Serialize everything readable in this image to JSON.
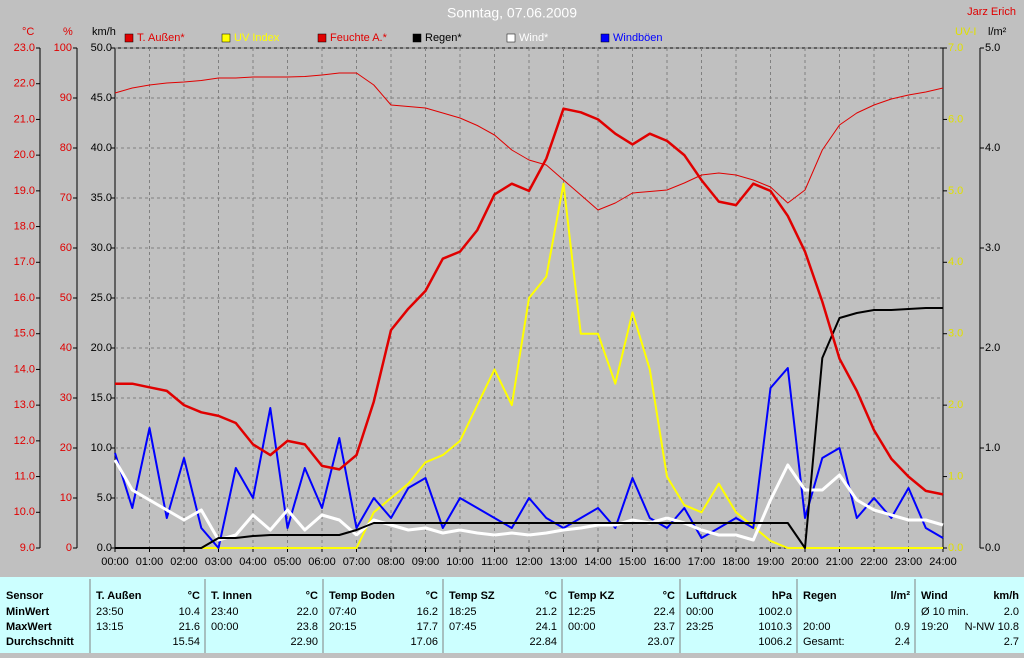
{
  "chart_data": {
    "type": "line",
    "title": "Sonntag, 07.06.2009",
    "author": "Jarz Erich",
    "xlim": [
      0,
      24
    ],
    "xticks": [
      {
        "value": 0,
        "label": "00:00"
      },
      {
        "value": 1,
        "label": "01:00"
      },
      {
        "value": 2,
        "label": "02:00"
      },
      {
        "value": 3,
        "label": "03:00"
      },
      {
        "value": 4,
        "label": "04:00"
      },
      {
        "value": 5,
        "label": "05:00"
      },
      {
        "value": 6,
        "label": "06:00"
      },
      {
        "value": 7,
        "label": "07:00"
      },
      {
        "value": 8,
        "label": "08:00"
      },
      {
        "value": 9,
        "label": "09:00"
      },
      {
        "value": 10,
        "label": "10:00"
      },
      {
        "value": 11,
        "label": "11:00"
      },
      {
        "value": 12,
        "label": "12:00"
      },
      {
        "value": 13,
        "label": "13:00"
      },
      {
        "value": 14,
        "label": "14:00"
      },
      {
        "value": 15,
        "label": "15:00"
      },
      {
        "value": 16,
        "label": "16:00"
      },
      {
        "value": 17,
        "label": "17:00"
      },
      {
        "value": 18,
        "label": "18:00"
      },
      {
        "value": 19,
        "label": "19:00"
      },
      {
        "value": 20,
        "label": "20:00"
      },
      {
        "value": 21,
        "label": "21:00"
      },
      {
        "value": 22,
        "label": "22:00"
      },
      {
        "value": 23,
        "label": "23:00"
      },
      {
        "value": 24,
        "label": "24:00"
      }
    ],
    "grid": true,
    "axes": [
      {
        "label": "°C",
        "color": "#e00000",
        "lim": [
          9,
          23
        ],
        "ticks": [
          {
            "value": 9,
            "label": "9.0"
          },
          {
            "value": 10,
            "label": "10.0"
          },
          {
            "value": 11,
            "label": "11.0"
          },
          {
            "value": 12,
            "label": "12.0"
          },
          {
            "value": 13,
            "label": "13.0"
          },
          {
            "value": 14,
            "label": "14.0"
          },
          {
            "value": 15,
            "label": "15.0"
          },
          {
            "value": 16,
            "label": "16.0"
          },
          {
            "value": 17,
            "label": "17.0"
          },
          {
            "value": 18,
            "label": "18.0"
          },
          {
            "value": 19,
            "label": "19.0"
          },
          {
            "value": 20,
            "label": "20.0"
          },
          {
            "value": 21,
            "label": "21.0"
          },
          {
            "value": 22,
            "label": "22.0"
          },
          {
            "value": 23,
            "label": "23.0"
          }
        ]
      },
      {
        "label": "%",
        "color": "#e00000",
        "lim": [
          0,
          100
        ],
        "ticks": [
          0,
          10,
          20,
          30,
          40,
          50,
          60,
          70,
          80,
          90,
          100
        ]
      },
      {
        "label": "km/h",
        "color": "#000000",
        "lim": [
          0,
          50
        ],
        "ticks": [
          {
            "value": 0,
            "label": "0.0"
          },
          {
            "value": 5,
            "label": "5.0"
          },
          {
            "value": 10,
            "label": "10.0"
          },
          {
            "value": 15,
            "label": "15.0"
          },
          {
            "value": 20,
            "label": "20.0"
          },
          {
            "value": 25,
            "label": "25.0"
          },
          {
            "value": 30,
            "label": "30.0"
          },
          {
            "value": 35,
            "label": "35.0"
          },
          {
            "value": 40,
            "label": "40.0"
          },
          {
            "value": 45,
            "label": "45.0"
          },
          {
            "value": 50,
            "label": "50.0"
          }
        ]
      },
      {
        "label": "UV-I",
        "color": "#e0e000",
        "lim": [
          0,
          7
        ],
        "ticks": [
          {
            "value": 0,
            "label": "0.0"
          },
          {
            "value": 1,
            "label": "1.0"
          },
          {
            "value": 2,
            "label": "2.0"
          },
          {
            "value": 3,
            "label": "3.0"
          },
          {
            "value": 4,
            "label": "4.0"
          },
          {
            "value": 5,
            "label": "5.0"
          },
          {
            "value": 6,
            "label": "6.0"
          },
          {
            "value": 7,
            "label": "7.0"
          }
        ]
      },
      {
        "label": "l/m²",
        "color": "#000000",
        "lim": [
          0,
          5
        ],
        "ticks": [
          {
            "value": 0,
            "label": "0.0"
          },
          {
            "value": 1,
            "label": "1.0"
          },
          {
            "value": 2,
            "label": "2.0"
          },
          {
            "value": 3,
            "label": "3.0"
          },
          {
            "value": 4,
            "label": "4.0"
          },
          {
            "value": 5,
            "label": "5.0"
          }
        ]
      }
    ],
    "x": [
      0,
      0.5,
      1,
      1.5,
      2,
      2.5,
      3,
      3.5,
      4,
      4.5,
      5,
      5.5,
      6,
      6.5,
      7,
      7.5,
      8,
      8.5,
      9,
      9.5,
      10,
      10.5,
      11,
      11.5,
      12,
      12.5,
      13,
      13.5,
      14,
      14.5,
      15,
      15.5,
      16,
      16.5,
      17,
      17.5,
      18,
      18.5,
      19,
      19.5,
      20,
      20.5,
      21,
      21.5,
      22,
      22.5,
      23,
      23.5,
      24
    ],
    "series": [
      {
        "name": "T. Außen*",
        "color": "#e00000",
        "axis": 0,
        "values": [
          13.6,
          13.6,
          13.5,
          13.4,
          13.0,
          12.8,
          12.7,
          12.5,
          11.9,
          11.6,
          12.0,
          11.9,
          11.3,
          11.2,
          11.6,
          13.1,
          15.1,
          15.7,
          16.2,
          17.1,
          17.3,
          17.9,
          18.9,
          19.2,
          19.0,
          19.9,
          21.3,
          21.2,
          21.0,
          20.6,
          20.3,
          20.6,
          20.4,
          20.0,
          19.3,
          18.7,
          18.6,
          19.2,
          19.0,
          18.3,
          17.3,
          15.9,
          14.3,
          13.4,
          12.3,
          11.5,
          11.0,
          10.6,
          10.5
        ]
      },
      {
        "name": "UV Index",
        "color": "#ffff00",
        "axis": 3,
        "values": [
          0,
          0,
          0,
          0,
          0,
          0,
          0,
          0,
          0,
          0,
          0,
          0,
          0,
          0,
          0,
          0.5,
          0.7,
          0.9,
          1.2,
          1.3,
          1.5,
          2.0,
          2.5,
          2.0,
          3.5,
          3.8,
          5.1,
          3.0,
          3.0,
          2.3,
          3.3,
          2.5,
          1.0,
          0.6,
          0.5,
          0.9,
          0.5,
          0.3,
          0.1,
          0,
          0,
          0,
          0,
          0,
          0,
          0,
          0,
          0,
          0
        ]
      },
      {
        "name": "Feuchte A.*",
        "color": "#e00000",
        "axis": 1,
        "values": [
          91,
          92,
          92.6,
          93,
          93.2,
          93.5,
          94,
          94,
          94.2,
          94.2,
          94.2,
          94.3,
          94.6,
          95,
          95,
          92.6,
          88.6,
          88.3,
          88,
          87,
          86,
          84.5,
          82.6,
          79.6,
          77.6,
          76.6,
          73.6,
          70.6,
          67.6,
          69,
          71,
          71.3,
          71.6,
          73,
          74.6,
          75,
          74.6,
          73.6,
          72.2,
          69,
          71.6,
          79.6,
          84.6,
          87,
          88.6,
          89.8,
          90.6,
          91.2,
          92
        ]
      },
      {
        "name": "Regen*",
        "color": "#000000",
        "axis": 4,
        "values": [
          0,
          0,
          0,
          0,
          0,
          0,
          0.1,
          0.1,
          0.12,
          0.13,
          0.13,
          0.13,
          0.13,
          0.13,
          0.18,
          0.25,
          0.25,
          0.25,
          0.25,
          0.25,
          0.25,
          0.25,
          0.25,
          0.25,
          0.25,
          0.25,
          0.25,
          0.25,
          0.25,
          0.25,
          0.25,
          0.25,
          0.25,
          0.25,
          0.25,
          0.25,
          0.25,
          0.25,
          0.25,
          0.25,
          0,
          1.9,
          2.3,
          2.35,
          2.38,
          2.38,
          2.39,
          2.4,
          2.4
        ]
      },
      {
        "name": "Wind*",
        "color": "#ffffff",
        "axis": 2,
        "values": [
          8.8,
          5.8,
          4.8,
          3.8,
          2.8,
          3.8,
          0.8,
          1.3,
          3.3,
          1.8,
          3.8,
          1.8,
          3.3,
          2.8,
          1.3,
          2.8,
          2.3,
          1.8,
          2.0,
          1.5,
          1.8,
          1.5,
          1.3,
          1.5,
          1.3,
          1.5,
          1.8,
          2.0,
          2.3,
          2.3,
          2.8,
          2.5,
          3.0,
          2.5,
          1.8,
          1.3,
          1.3,
          0.8,
          4.8,
          8.3,
          5.8,
          5.8,
          7.3,
          4.8,
          3.8,
          3.3,
          2.8,
          2.8,
          2.3
        ]
      },
      {
        "name": "Windböen",
        "color": "#0000ff",
        "axis": 2,
        "values": [
          9.5,
          4,
          12,
          3,
          9,
          2,
          0,
          8,
          5,
          14,
          2,
          8,
          4,
          11,
          2,
          5,
          3,
          6,
          7,
          2,
          5,
          4,
          3,
          2,
          5,
          3,
          2,
          3,
          4,
          2,
          7,
          3,
          2,
          4,
          1,
          2,
          3,
          2,
          16,
          18,
          3,
          9,
          10,
          3,
          5,
          3,
          6,
          2,
          1
        ]
      }
    ]
  },
  "table": {
    "row_labels": [
      "Sensor",
      "MinWert",
      "MaxWert",
      "Durchschnitt"
    ],
    "groups": [
      {
        "name": "T. Außen",
        "unit": "°C",
        "min": [
          "23:50",
          "10.4"
        ],
        "max": [
          "13:15",
          "21.6"
        ],
        "avg": [
          "15.54"
        ]
      },
      {
        "name": "T. Innen",
        "unit": "°C",
        "min": [
          "23:40",
          "22.0"
        ],
        "max": [
          "00:00",
          "23.8"
        ],
        "avg": [
          "22.90"
        ]
      },
      {
        "name": "Temp Boden",
        "unit": "°C",
        "min": [
          "07:40",
          "16.2"
        ],
        "max": [
          "20:15",
          "17.7"
        ],
        "avg": [
          "17.06"
        ]
      },
      {
        "name": "Temp SZ",
        "unit": "°C",
        "min": [
          "18:25",
          "21.2"
        ],
        "max": [
          "07:45",
          "24.1"
        ],
        "avg": [
          "22.84"
        ]
      },
      {
        "name": "Temp KZ",
        "unit": "°C",
        "min": [
          "12:25",
          "22.4"
        ],
        "max": [
          "00:00",
          "23.7"
        ],
        "avg": [
          "23.07"
        ]
      },
      {
        "name": "Luftdruck",
        "unit": "hPa",
        "min": [
          "00:00",
          "1002.0"
        ],
        "max": [
          "23:25",
          "1010.3"
        ],
        "avg": [
          "1006.2"
        ]
      },
      {
        "name": "Regen",
        "unit": "l/m²",
        "max": [
          "20:00",
          "0.9"
        ],
        "avg": [
          "Gesamt:",
          "2.4"
        ]
      },
      {
        "name": "Wind",
        "unit": "km/h",
        "min": [
          "Ø 10 min.",
          "2.0"
        ],
        "max": [
          "19:20",
          "N-NW 10.8"
        ],
        "avg": [
          "2.7"
        ]
      }
    ]
  }
}
